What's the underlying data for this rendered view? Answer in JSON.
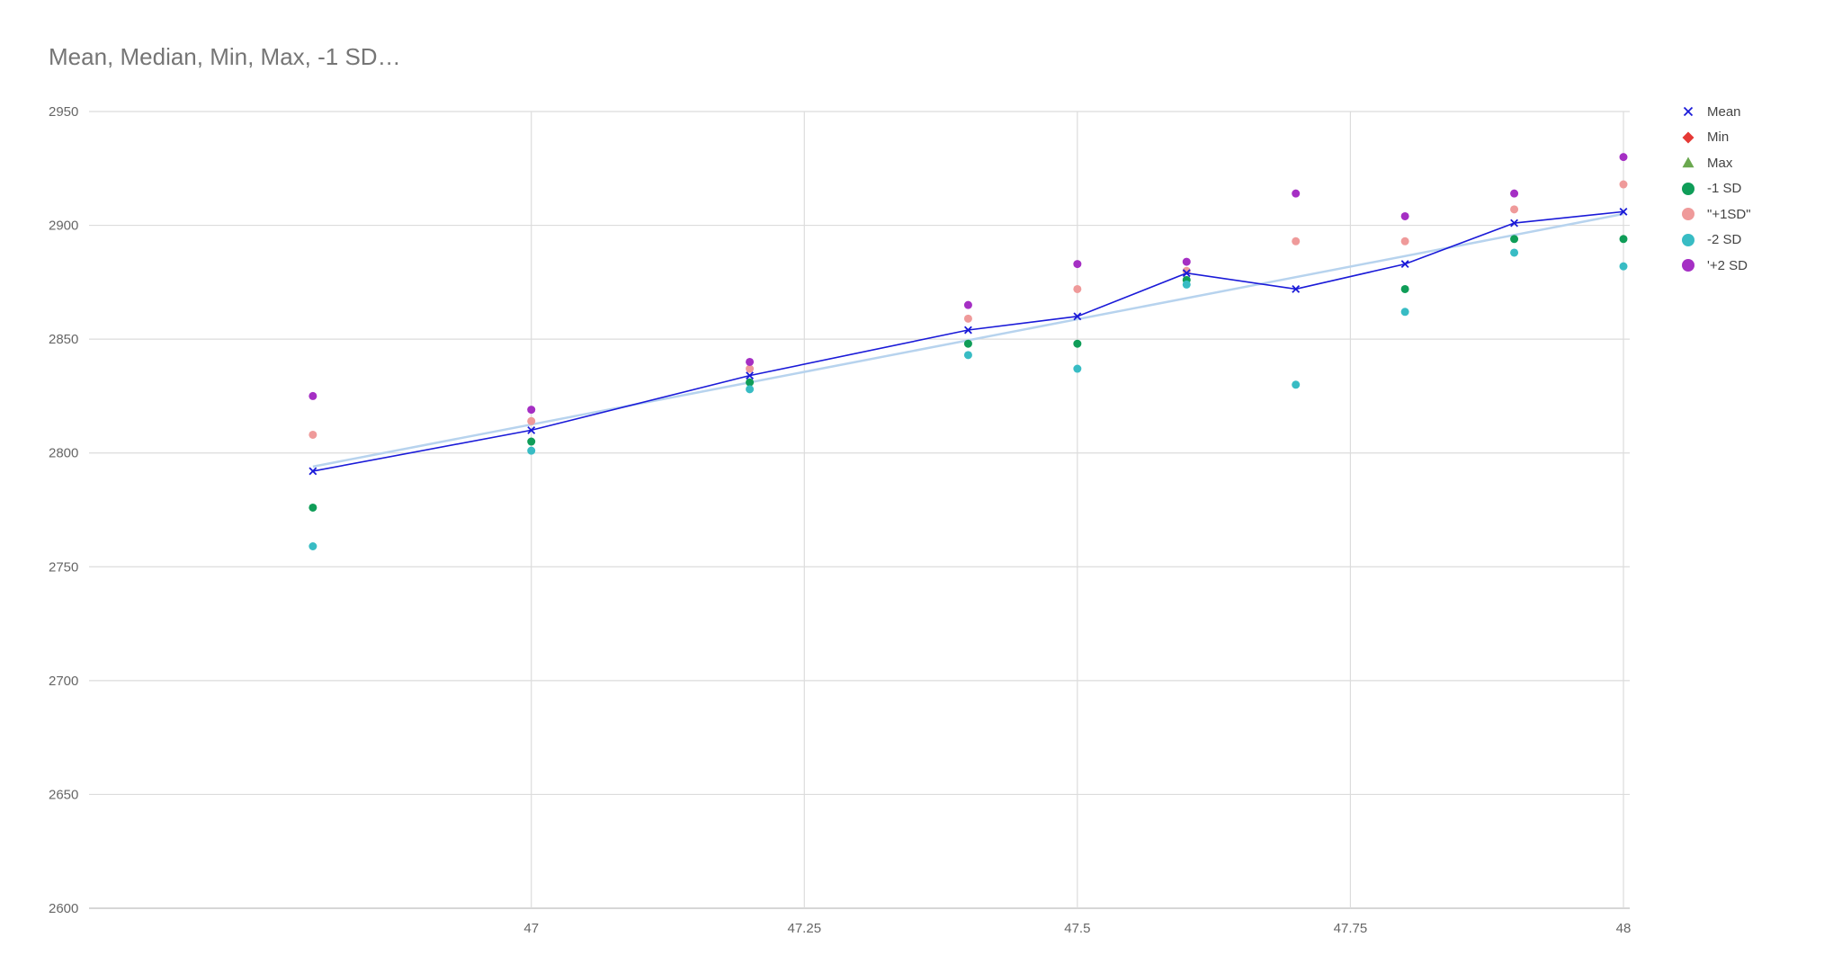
{
  "chart_data": {
    "type": "scatter",
    "title": "Mean, Median, Min, Max, -1 SD…",
    "xlabel": "",
    "ylabel": "",
    "xlim": [
      46.6,
      48
    ],
    "ylim": [
      2600,
      2950
    ],
    "xticks": [
      "47",
      "47.25",
      "47.5",
      "47.75",
      "48"
    ],
    "yticks": [
      "2950",
      "2900",
      "2850",
      "2800",
      "2750",
      "2700",
      "2650",
      "2600"
    ],
    "grid": true,
    "legend_position": "right",
    "x": [
      46.8,
      47.0,
      47.2,
      47.4,
      47.5,
      47.6,
      47.7,
      47.8,
      47.9,
      48.0
    ],
    "series": [
      {
        "name": "Mean",
        "marker": "x",
        "color": "#1a1ad8",
        "line": true,
        "values": [
          2792,
          2810,
          2834,
          2854,
          2860,
          2879,
          2872,
          2883,
          2901,
          2906
        ]
      },
      {
        "name": "Min",
        "marker": "diamond",
        "color": "#e53935",
        "values": []
      },
      {
        "name": "Max",
        "marker": "triangle",
        "color": "#6aa84f",
        "values": []
      },
      {
        "name": "-1 SD",
        "marker": "circle",
        "color": "#0f9d58",
        "values": [
          2776,
          2805,
          2831,
          2848,
          2848,
          2876,
          null,
          2872,
          2894,
          2894
        ]
      },
      {
        "name": "\"+1SD\"",
        "marker": "circle",
        "color": "#ef9a9a",
        "values": [
          2808,
          2814,
          2837,
          2859,
          2872,
          2880,
          2893,
          2893,
          2907,
          2918
        ]
      },
      {
        "name": "-2 SD",
        "marker": "circle",
        "color": "#38bcc4",
        "values": [
          2759,
          2801,
          2828,
          2843,
          2837,
          2874,
          2830,
          2862,
          2888,
          2882
        ]
      },
      {
        "name": "'+2 SD",
        "marker": "circle",
        "color": "#a52fc4",
        "values": [
          2825,
          2819,
          2840,
          2865,
          2883,
          2884,
          2914,
          2904,
          2914,
          2930
        ]
      }
    ],
    "trendline": {
      "series": "Mean",
      "color": "#b7d3ee",
      "start": [
        46.8,
        2794
      ],
      "end": [
        48.0,
        2905
      ]
    }
  }
}
